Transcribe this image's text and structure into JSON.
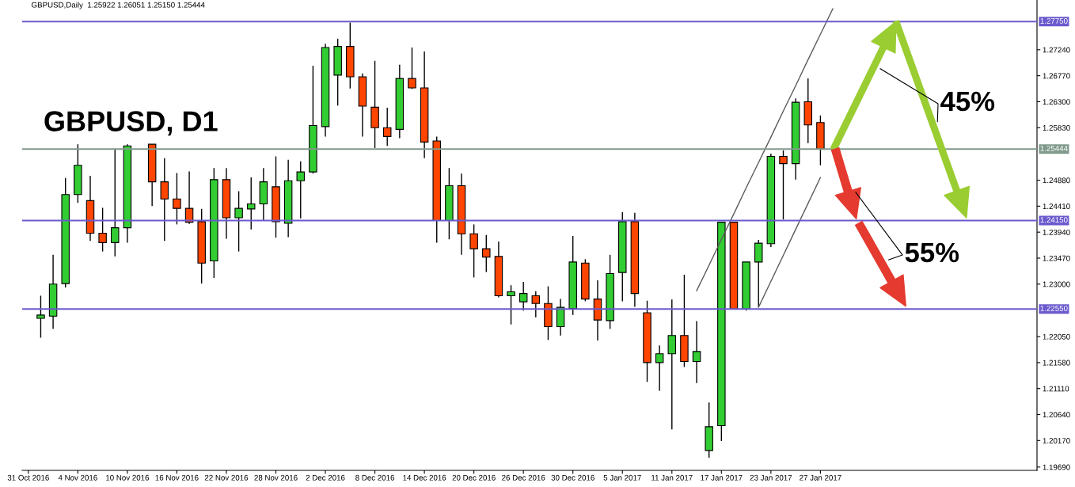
{
  "chart_data": {
    "type": "candlestick",
    "title": "GBPUSD, D1",
    "subtitle": "GBPUSD,Daily  1.25922 1.26051 1.25150 1.25444",
    "categories": [
      "31 Oct 2016",
      null,
      null,
      null,
      "4 Nov 2016",
      null,
      null,
      null,
      "10 Nov 2016",
      null,
      null,
      null,
      "16 Nov 2016",
      null,
      null,
      null,
      "22 Nov 2016",
      null,
      null,
      null,
      "28 Nov 2016",
      null,
      null,
      null,
      "2 Dec 2016",
      null,
      null,
      null,
      "8 Dec 2016",
      null,
      null,
      null,
      "14 Dec 2016",
      null,
      null,
      null,
      "20 Dec 2016",
      null,
      null,
      null,
      "26 Dec 2016",
      null,
      null,
      null,
      "30 Dec 2016",
      null,
      null,
      null,
      "5 Jan 2017",
      null,
      null,
      null,
      "11 Jan 2017",
      null,
      null,
      null,
      "17 Jan 2017",
      null,
      null,
      null,
      "23 Jan 2017",
      null,
      null,
      null,
      "27 Jan 2017",
      null,
      null,
      null,
      null,
      null,
      null,
      null,
      null,
      null,
      null,
      null,
      null,
      null,
      null,
      null,
      null,
      null
    ],
    "ohlc": [
      null,
      [
        1.2238,
        1.2279,
        1.2203,
        1.2244
      ],
      [
        1.2242,
        1.2353,
        1.2219,
        1.23
      ],
      [
        1.2301,
        1.2492,
        1.2294,
        1.2462
      ],
      [
        1.2462,
        1.2553,
        1.2447,
        1.2515
      ],
      [
        1.2451,
        1.2496,
        1.2378,
        1.2392
      ],
      [
        1.2392,
        1.2438,
        1.2359,
        1.2375
      ],
      [
        1.2375,
        1.2545,
        1.235,
        1.2402
      ],
      [
        1.2402,
        1.2553,
        1.2375,
        1.255
      ],
      null,
      [
        1.2553,
        1.2553,
        1.2441,
        1.2485
      ],
      [
        1.2485,
        1.2528,
        1.2378,
        1.2454
      ],
      [
        1.2454,
        1.2501,
        1.2408,
        1.2437
      ],
      [
        1.2437,
        1.2504,
        1.2409,
        1.2412
      ],
      [
        1.2413,
        1.2436,
        1.2301,
        1.2338
      ],
      [
        1.2342,
        1.251,
        1.2311,
        1.2489
      ],
      [
        1.2489,
        1.251,
        1.2382,
        1.242
      ],
      [
        1.242,
        1.2468,
        1.2359,
        1.2437
      ],
      [
        1.2436,
        1.2493,
        1.2399,
        1.2445
      ],
      [
        1.2445,
        1.251,
        1.2415,
        1.2485
      ],
      [
        1.2476,
        1.2531,
        1.2384,
        1.2413
      ],
      [
        1.241,
        1.2525,
        1.2385,
        1.2487
      ],
      [
        1.2487,
        1.2522,
        1.2419,
        1.2503
      ],
      [
        1.2503,
        1.2695,
        1.25,
        1.2587
      ],
      [
        1.2585,
        1.2735,
        1.2567,
        1.2728
      ],
      [
        1.2678,
        1.2744,
        1.2623,
        1.273
      ],
      [
        1.273,
        1.2773,
        1.2654,
        1.2675
      ],
      [
        1.2675,
        1.2681,
        1.2567,
        1.2622
      ],
      [
        1.262,
        1.2704,
        1.2546,
        1.2583
      ],
      [
        1.2583,
        1.2619,
        1.255,
        1.2567
      ],
      [
        1.258,
        1.2697,
        1.2564,
        1.2672
      ],
      [
        1.2672,
        1.2728,
        1.2653,
        1.2655
      ],
      [
        1.2655,
        1.2721,
        1.2528,
        1.2557
      ],
      [
        1.2559,
        1.2567,
        1.2375,
        1.2415
      ],
      [
        1.2415,
        1.251,
        1.2381,
        1.2478
      ],
      [
        1.2478,
        1.25,
        1.2353,
        1.2391
      ],
      [
        1.2391,
        1.2408,
        1.2312,
        1.2364
      ],
      [
        1.2364,
        1.2389,
        1.2322,
        1.2349
      ],
      [
        1.235,
        1.2377,
        1.2276,
        1.2279
      ],
      [
        1.2279,
        1.2298,
        1.2227,
        1.2286
      ],
      [
        1.2268,
        1.2304,
        1.2252,
        1.2283
      ],
      [
        1.2279,
        1.2287,
        1.224,
        1.2265
      ],
      [
        1.2265,
        1.2296,
        1.2199,
        1.2223
      ],
      [
        1.2223,
        1.2273,
        1.2207,
        1.2258
      ],
      [
        1.2256,
        1.2387,
        1.2244,
        1.234
      ],
      [
        1.2338,
        1.2345,
        1.2269,
        1.2273
      ],
      [
        1.2273,
        1.2307,
        1.2198,
        1.2235
      ],
      [
        1.2234,
        1.2353,
        1.2219,
        1.2319
      ],
      [
        1.2321,
        1.243,
        1.2269,
        1.2413
      ],
      [
        1.2413,
        1.2429,
        1.2259,
        1.2283
      ],
      [
        1.2248,
        1.227,
        1.2123,
        1.2158
      ],
      [
        1.2158,
        1.2189,
        1.2107,
        1.2174
      ],
      [
        1.2174,
        1.2272,
        1.2037,
        1.2207
      ],
      [
        1.2207,
        1.2317,
        1.215,
        1.216
      ],
      [
        1.216,
        1.2233,
        1.2121,
        1.2178
      ],
      [
        1.1999,
        1.2086,
        1.1986,
        1.2042
      ],
      [
        1.2044,
        1.2412,
        1.2016,
        1.2412
      ],
      [
        1.2412,
        1.2412,
        1.2254,
        1.2255
      ],
      [
        1.2255,
        1.234,
        1.2252,
        1.234
      ],
      [
        1.234,
        1.238,
        1.2259,
        1.2374
      ],
      [
        1.2373,
        1.2536,
        1.2367,
        1.2531
      ],
      [
        1.2531,
        1.2542,
        1.2417,
        1.2518
      ],
      [
        1.2518,
        1.2636,
        1.2489,
        1.2629
      ],
      [
        1.263,
        1.2672,
        1.2555,
        1.2588
      ],
      [
        1.25922,
        1.26051,
        1.2515,
        1.25444
      ],
      null,
      null,
      null,
      null,
      null,
      null,
      null,
      null,
      null,
      null,
      null,
      null,
      null,
      null,
      null,
      null,
      null
    ],
    "colors": [
      null,
      "#32cd32",
      "#32cd32",
      "#32cd32",
      "#32cd32",
      "#ff4500",
      "#ff4500",
      "#32cd32",
      "#32cd32",
      null,
      "#ff4500",
      "#ff4500",
      "#ff4500",
      "#ff4500",
      "#ff4500",
      "#32cd32",
      "#ff4500",
      "#32cd32",
      "#32cd32",
      "#32cd32",
      "#ff4500",
      "#32cd32",
      "#32cd32",
      "#32cd32",
      "#32cd32",
      "#32cd32",
      "#ff4500",
      "#ff4500",
      "#ff4500",
      "#ff4500",
      "#32cd32",
      "#ff4500",
      "#ff4500",
      "#ff4500",
      "#32cd32",
      "#ff4500",
      "#ff4500",
      "#ff4500",
      "#ff4500",
      "#32cd32",
      "#32cd32",
      "#ff4500",
      "#ff4500",
      "#32cd32",
      "#32cd32",
      "#ff4500",
      "#ff4500",
      "#32cd32",
      "#32cd32",
      "#ff4500",
      "#ff4500",
      "#32cd32",
      "#32cd32",
      "#ff4500",
      "#32cd32",
      "#32cd32",
      "#32cd32",
      "#ff4500",
      "#32cd32",
      "#32cd32",
      "#32cd32",
      "#ff4500",
      "#32cd32",
      "#ff4500",
      "#ff4500",
      null,
      null,
      null,
      null,
      null,
      null,
      null,
      null,
      null,
      null,
      null,
      null,
      null,
      null,
      null,
      null,
      null
    ],
    "series": [
      {
        "type": "line",
        "color": "#5a5a5a",
        "values": [
          null,
          null,
          null,
          null,
          null,
          null,
          null,
          null,
          null,
          null,
          null,
          null,
          null,
          null,
          null,
          null,
          null,
          null,
          null,
          null,
          null,
          null,
          null,
          null,
          null,
          null,
          null,
          null,
          null,
          null,
          null,
          null,
          null,
          null,
          null,
          null,
          null,
          null,
          null,
          null,
          null,
          null,
          null,
          null,
          null,
          null,
          null,
          null,
          null,
          null,
          null,
          null,
          null,
          null,
          1.2288,
          1.2334,
          1.2381,
          1.2427,
          1.2474,
          1.252,
          1.2566,
          1.2613,
          1.2659,
          1.2706,
          1.2752,
          1.2798,
          null,
          null,
          null,
          null,
          null,
          null,
          null,
          null,
          null,
          null,
          null,
          null,
          null,
          null,
          null,
          null
        ]
      },
      {
        "type": "line",
        "color": "#5a5a5a",
        "values": [
          null,
          null,
          null,
          null,
          null,
          null,
          null,
          null,
          null,
          null,
          null,
          null,
          null,
          null,
          null,
          null,
          null,
          null,
          null,
          null,
          null,
          null,
          null,
          null,
          null,
          null,
          null,
          null,
          null,
          null,
          null,
          null,
          null,
          null,
          null,
          null,
          null,
          null,
          null,
          null,
          null,
          null,
          null,
          null,
          null,
          null,
          null,
          null,
          null,
          null,
          null,
          null,
          null,
          null,
          null,
          null,
          null,
          null,
          null,
          1.2258,
          1.2305,
          1.2352,
          1.2399,
          1.2446,
          1.2493,
          null,
          null,
          null,
          null,
          null,
          null,
          null,
          null,
          null,
          null,
          null,
          null,
          null,
          null,
          null,
          null,
          null
        ]
      }
    ],
    "ylim": [
      1.1963,
      1.2814
    ],
    "yticks": [
      {
        "value": 1.2724,
        "label": "1.27240"
      },
      {
        "value": 1.2677,
        "label": "1.26770"
      },
      {
        "value": 1.263,
        "label": "1.26300"
      },
      {
        "value": 1.2583,
        "label": "1.25830"
      },
      {
        "value": 1.2488,
        "label": "1.24880"
      },
      {
        "value": 1.2441,
        "label": "1.24410"
      },
      {
        "value": 1.2394,
        "label": "1.23940"
      },
      {
        "value": 1.2347,
        "label": "1.23470"
      },
      {
        "value": 1.23,
        "label": "1.23000"
      },
      {
        "value": 1.2205,
        "label": "1.22050"
      },
      {
        "value": 1.2158,
        "label": "1.21580"
      },
      {
        "value": 1.2111,
        "label": "1.21110"
      },
      {
        "value": 1.2064,
        "label": "1.20640"
      },
      {
        "value": 1.2017,
        "label": "1.20170"
      },
      {
        "value": 1.1969,
        "label": "1.19690"
      }
    ],
    "ref_lines": [
      {
        "axis": "y",
        "value": 1.2775,
        "label": "1.27750",
        "color": "#6a5acd"
      },
      {
        "axis": "y",
        "value": 1.2415,
        "label": "1.24150",
        "color": "#6a5acd"
      },
      {
        "axis": "y",
        "value": 1.2255,
        "label": "1.22550",
        "color": "#6a5acd"
      },
      {
        "axis": "y",
        "value": 1.25444,
        "label": "1.25444",
        "color": "#7f9a8c"
      }
    ],
    "annotations": [
      "45%",
      "55%"
    ]
  }
}
